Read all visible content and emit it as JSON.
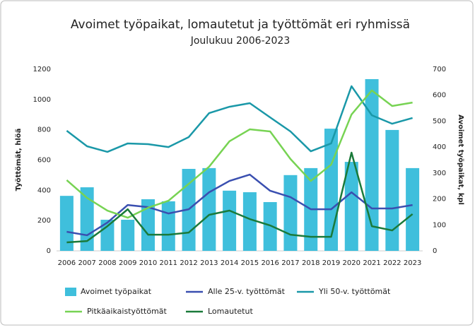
{
  "chart_data": {
    "type": "combo",
    "title": "Avoimet työpaikat, lomautetut ja työttömät eri ryhmissä",
    "subtitle": "Joulukuu 2006-2023",
    "y_label": "Työttömät, hlöä",
    "y2_label": "Avoimet työpaikat, kpl",
    "categories": [
      "2006",
      "2007",
      "2008",
      "2009",
      "2010",
      "2011",
      "2012",
      "2013",
      "2014",
      "2015",
      "2016",
      "2017",
      "2018",
      "2019",
      "2020",
      "2021",
      "2022",
      "2023"
    ],
    "ylim": [
      0,
      1200
    ],
    "yticks": [
      0,
      200,
      400,
      600,
      800,
      1000,
      1200
    ],
    "y2lim": [
      0,
      700
    ],
    "y2ticks": [
      0,
      100,
      200,
      300,
      400,
      500,
      600,
      700
    ],
    "grid": false,
    "series": [
      {
        "name": "Avoimet työpaikat",
        "type": "bar",
        "axis": "y2",
        "color": "#3fbfdc",
        "values": [
          212,
          245,
          120,
          120,
          199,
          191,
          316,
          319,
          232,
          226,
          188,
          292,
          319,
          471,
          343,
          662,
          466,
          319
        ]
      },
      {
        "name": "Alle 25-v. työttömät",
        "type": "line",
        "color": "#3a4fb0",
        "values": [
          126,
          103,
          187,
          303,
          289,
          247,
          275,
          387,
          462,
          504,
          397,
          355,
          275,
          275,
          387,
          280,
          280,
          303
        ]
      },
      {
        "name": "Yli 50-v. työttömät",
        "type": "line",
        "color": "#1a98a8",
        "values": [
          794,
          691,
          654,
          710,
          705,
          686,
          752,
          910,
          952,
          976,
          882,
          789,
          658,
          710,
          1088,
          896,
          840,
          878
        ]
      },
      {
        "name": "Pitkäaikaistyöttömät",
        "type": "line",
        "color": "#77d353",
        "values": [
          467,
          350,
          266,
          219,
          285,
          331,
          443,
          556,
          724,
          803,
          789,
          607,
          462,
          570,
          901,
          1060,
          957,
          980
        ]
      },
      {
        "name": "Lomautetut",
        "type": "line",
        "color": "#1a7a3a",
        "values": [
          56,
          65,
          163,
          275,
          107,
          107,
          121,
          238,
          266,
          210,
          168,
          107,
          93,
          93,
          649,
          163,
          135,
          243
        ]
      }
    ]
  }
}
